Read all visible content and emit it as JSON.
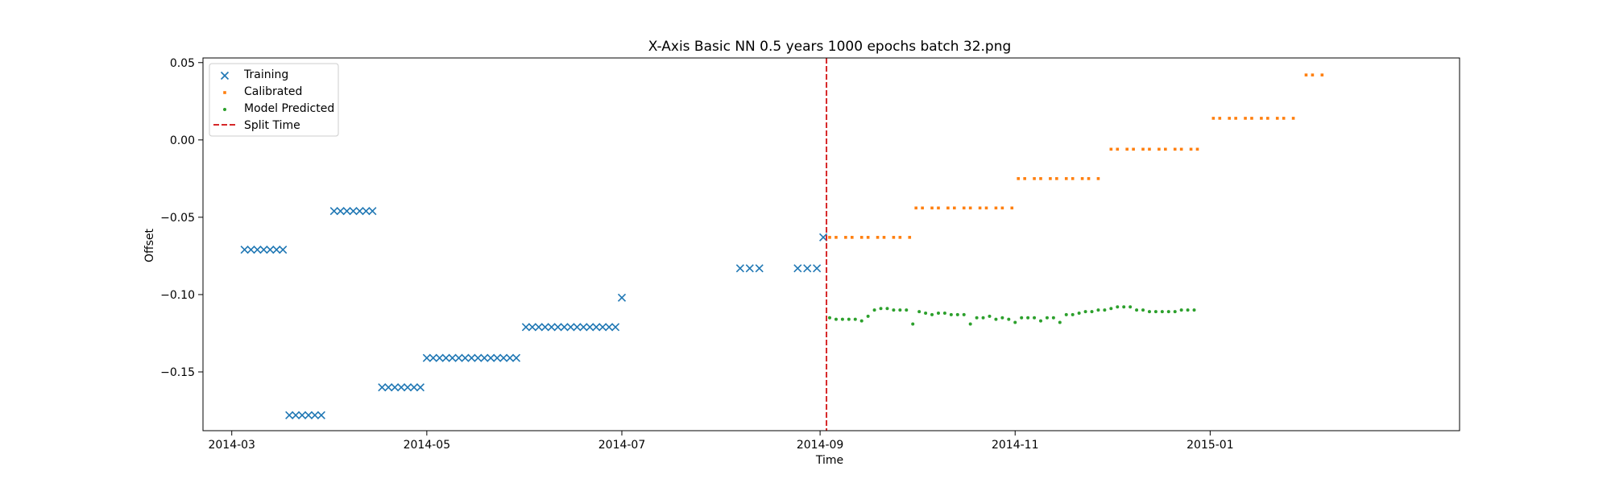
{
  "chart_data": {
    "type": "scatter",
    "title": "X-Axis Basic NN 0.5 years 1000 epochs batch 32.png",
    "xlabel": "Time",
    "ylabel": "Offset",
    "xlim": [
      "2014-02-20",
      "2015-03-20"
    ],
    "ylim": [
      -0.188,
      0.053
    ],
    "x_ticks": [
      "2014-03",
      "2014-05",
      "2014-07",
      "2014-09",
      "2014-11",
      "2015-01"
    ],
    "y_ticks": [
      0.05,
      0.0,
      -0.05,
      -0.1,
      -0.15
    ],
    "y_tick_labels": [
      "0.05",
      "0.00",
      "−0.05",
      "−0.10",
      "−0.15"
    ],
    "grid": false,
    "legend_position": "top-left",
    "split_time": "2014-09-03",
    "series": [
      {
        "name": "Training",
        "marker": "x",
        "color": "#1f77b4",
        "segments": [
          {
            "start": "2014-03-05",
            "end": "2014-03-17",
            "value": -0.071
          },
          {
            "start": "2014-03-19",
            "end": "2014-03-30",
            "value": -0.178
          },
          {
            "start": "2014-04-02",
            "end": "2014-04-15",
            "value": -0.046
          },
          {
            "start": "2014-04-17",
            "end": "2014-04-29",
            "value": -0.16
          },
          {
            "start": "2014-05-01",
            "end": "2014-05-30",
            "value": -0.141
          },
          {
            "start": "2014-06-01",
            "end": "2014-06-29",
            "value": -0.121
          }
        ],
        "points": [
          {
            "x": "2014-07-01",
            "y": -0.102
          },
          {
            "x": "2014-08-07",
            "y": -0.083
          },
          {
            "x": "2014-08-10",
            "y": -0.083
          },
          {
            "x": "2014-08-13",
            "y": -0.083
          },
          {
            "x": "2014-08-25",
            "y": -0.083
          },
          {
            "x": "2014-08-28",
            "y": -0.083
          },
          {
            "x": "2014-08-31",
            "y": -0.083
          },
          {
            "x": "2014-09-02",
            "y": -0.063
          }
        ]
      },
      {
        "name": "Calibrated",
        "marker": "square",
        "color": "#ff7f0e",
        "segments": [
          {
            "start": "2014-09-04",
            "end": "2014-09-29",
            "value": -0.063
          },
          {
            "start": "2014-10-01",
            "end": "2014-10-31",
            "value": -0.044
          },
          {
            "start": "2014-11-02",
            "end": "2014-11-28",
            "value": -0.025
          },
          {
            "start": "2014-12-01",
            "end": "2014-12-30",
            "value": -0.006
          },
          {
            "start": "2015-01-02",
            "end": "2015-01-28",
            "value": 0.014
          },
          {
            "start": "2015-01-31",
            "end": "2015-02-05",
            "value": 0.042
          }
        ]
      },
      {
        "name": "Model Predicted",
        "marker": "dot",
        "color": "#2ca02c",
        "start": "2014-09-04",
        "step_days": 2,
        "values": [
          -0.115,
          -0.116,
          -0.116,
          -0.116,
          -0.116,
          -0.117,
          -0.114,
          -0.11,
          -0.109,
          -0.109,
          -0.11,
          -0.11,
          -0.11,
          -0.119,
          -0.111,
          -0.112,
          -0.113,
          -0.112,
          -0.112,
          -0.113,
          -0.113,
          -0.113,
          -0.119,
          -0.115,
          -0.115,
          -0.114,
          -0.116,
          -0.115,
          -0.116,
          -0.118,
          -0.115,
          -0.115,
          -0.115,
          -0.117,
          -0.115,
          -0.115,
          -0.118,
          -0.113,
          -0.113,
          -0.112,
          -0.111,
          -0.111,
          -0.11,
          -0.11,
          -0.109,
          -0.108,
          -0.108,
          -0.108,
          -0.11,
          -0.11,
          -0.111,
          -0.111,
          -0.111,
          -0.111,
          -0.111,
          -0.11,
          -0.11,
          -0.11
        ]
      },
      {
        "name": "Split Time",
        "marker": "dashed-line",
        "color": "#d62728"
      }
    ]
  }
}
